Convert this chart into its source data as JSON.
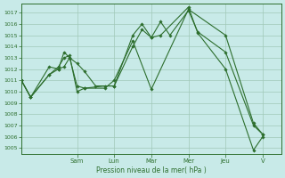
{
  "bg_color": "#c8eae8",
  "grid_color": "#a0c8b8",
  "line_color": "#2d6e2d",
  "marker_color": "#2d6e2d",
  "xlabel": "Pression niveau de la mer( hPa )",
  "ylim": [
    1004.5,
    1017.8
  ],
  "yticks": [
    1005,
    1006,
    1007,
    1008,
    1009,
    1010,
    1011,
    1012,
    1013,
    1014,
    1015,
    1016,
    1017
  ],
  "day_labels": [
    "Sam",
    "Lun",
    "Mar",
    "Mer",
    "Jeu",
    "V"
  ],
  "day_positions": [
    3,
    5,
    7,
    9,
    11,
    13
  ],
  "xlim": [
    0,
    14
  ],
  "series1_x": [
    0,
    0.5,
    1.5,
    2.0,
    2.3,
    2.6,
    3.0,
    3.4,
    4.0,
    5.0,
    6.0,
    6.5,
    7.0,
    7.5,
    8.0,
    9.0,
    9.5,
    11.0,
    12.5,
    13.0
  ],
  "series1_y": [
    1011.0,
    1009.5,
    1012.2,
    1012.0,
    1013.5,
    1013.0,
    1012.5,
    1011.8,
    1010.5,
    1010.5,
    1015.0,
    1016.0,
    1014.8,
    1016.2,
    1015.0,
    1017.2,
    1015.3,
    1013.5,
    1007.0,
    1006.2
  ],
  "series2_x": [
    0,
    0.5,
    1.5,
    2.0,
    2.3,
    2.6,
    3.0,
    3.4,
    4.5,
    5.0,
    6.0,
    6.5,
    7.0,
    7.5,
    9.0,
    9.5,
    11.0,
    12.5,
    13.0
  ],
  "series2_y": [
    1011.0,
    1009.5,
    1011.5,
    1012.0,
    1012.2,
    1013.0,
    1010.5,
    1010.3,
    1010.5,
    1010.5,
    1014.0,
    1015.5,
    1014.8,
    1015.0,
    1017.5,
    1015.2,
    1012.0,
    1004.8,
    1006.0
  ],
  "series3_x": [
    0,
    0.5,
    1.5,
    2.0,
    2.3,
    2.6,
    3.0,
    3.4,
    4.5,
    5.0,
    6.0,
    7.0,
    9.0,
    11.0,
    12.5,
    13.0
  ],
  "series3_y": [
    1011.0,
    1009.5,
    1011.5,
    1012.2,
    1013.0,
    1013.2,
    1010.0,
    1010.3,
    1010.3,
    1011.0,
    1014.5,
    1010.2,
    1017.3,
    1015.0,
    1007.2,
    1006.2
  ]
}
